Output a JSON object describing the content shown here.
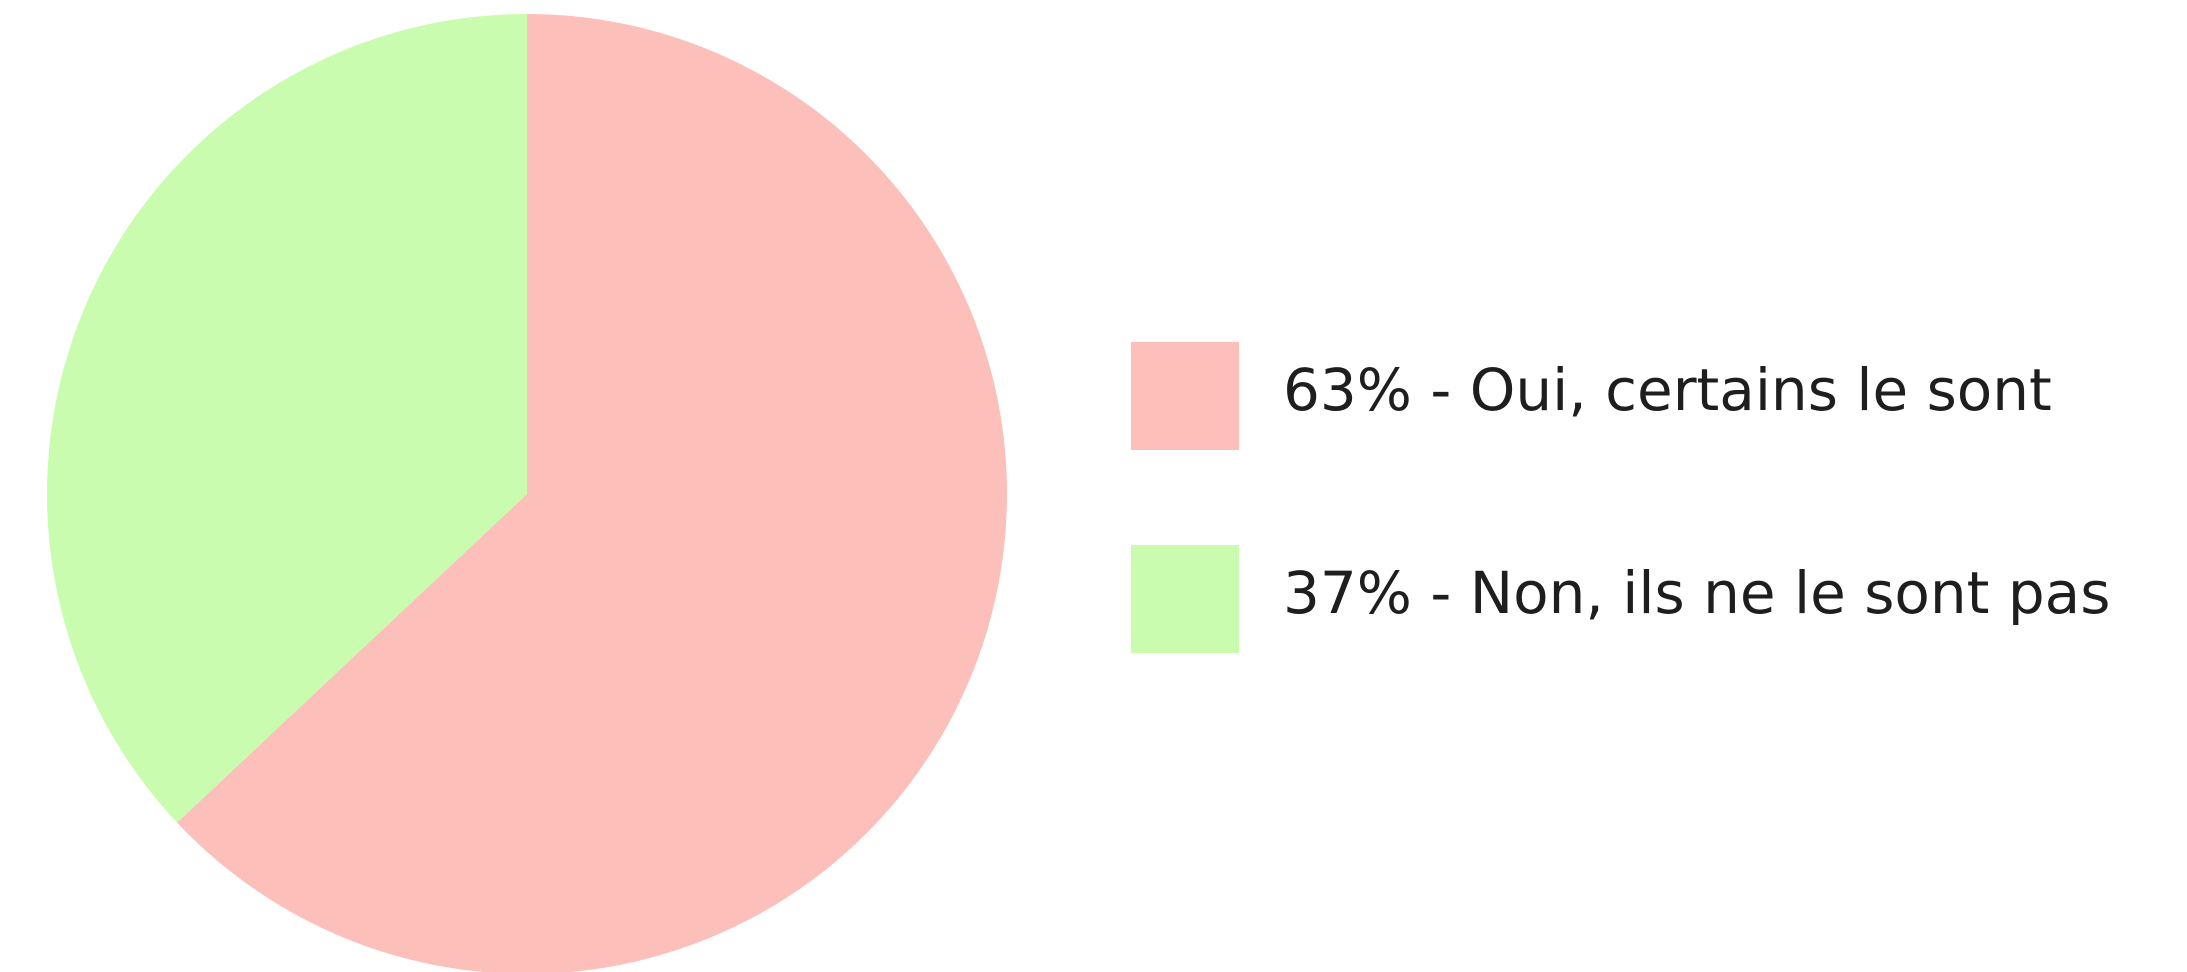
{
  "chart_data": {
    "type": "pie",
    "labels": [
      "63% - Oui, certains le sont",
      "37% - Non, ils ne le sont pas"
    ],
    "values": [
      63,
      37
    ],
    "colors": [
      "#fcbfb9",
      "#c9fcae"
    ],
    "legend": "right"
  }
}
